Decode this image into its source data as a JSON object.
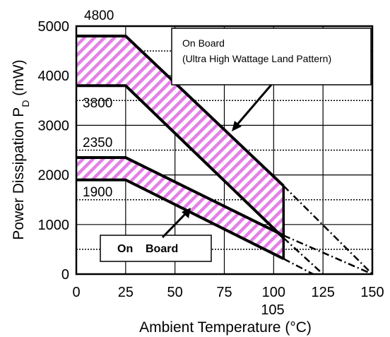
{
  "chart_data": {
    "type": "line",
    "xlabel": "Ambient Temperature (°C)",
    "ylabel_main": "Power Dissipation P",
    "ylabel_sub": "D",
    "ylabel_unit": " (mW)",
    "xlim": [
      0,
      150
    ],
    "ylim": [
      0,
      5000
    ],
    "x_ticks": [
      0,
      25,
      50,
      75,
      100,
      125,
      150
    ],
    "y_ticks": [
      0,
      1000,
      2000,
      3000,
      4000,
      5000
    ],
    "extra_x_label": "105",
    "value_annotations": [
      "4800",
      "3800",
      "2350",
      "1900"
    ],
    "legend_box_lines": [
      "On Board",
      "(Ultra High Wattage Land Pattern)"
    ],
    "label_box": "On    Board",
    "series": [
      {
        "x": [
          0,
          25,
          105
        ],
        "y": [
          4800,
          4800,
          1780
        ],
        "style": "solid"
      },
      {
        "x": [
          105,
          150
        ],
        "y": [
          1780,
          0
        ],
        "style": "dashdot"
      },
      {
        "x": [
          0,
          25,
          105
        ],
        "y": [
          3800,
          3800,
          730
        ],
        "style": "solid"
      },
      {
        "x": [
          105,
          125
        ],
        "y": [
          730,
          0
        ],
        "style": "dashdot"
      },
      {
        "x": [
          0,
          25,
          105
        ],
        "y": [
          2350,
          2350,
          780
        ],
        "style": "solid"
      },
      {
        "x": [
          105,
          150
        ],
        "y": [
          780,
          0
        ],
        "style": "dashdot"
      },
      {
        "x": [
          0,
          25,
          105
        ],
        "y": [
          1900,
          1900,
          310
        ],
        "style": "solid"
      },
      {
        "x": [
          105,
          120
        ],
        "y": [
          310,
          0
        ],
        "style": "dashdot"
      }
    ],
    "bands": [
      {
        "upper": [
          [
            0,
            4800
          ],
          [
            25,
            4800
          ],
          [
            105,
            1780
          ]
        ],
        "lower": [
          [
            0,
            3800
          ],
          [
            25,
            3800
          ],
          [
            105,
            730
          ]
        ]
      },
      {
        "upper": [
          [
            0,
            2350
          ],
          [
            25,
            2350
          ],
          [
            105,
            780
          ]
        ],
        "lower": [
          [
            0,
            1900
          ],
          [
            25,
            1900
          ],
          [
            105,
            310
          ]
        ]
      }
    ],
    "grid": true
  }
}
